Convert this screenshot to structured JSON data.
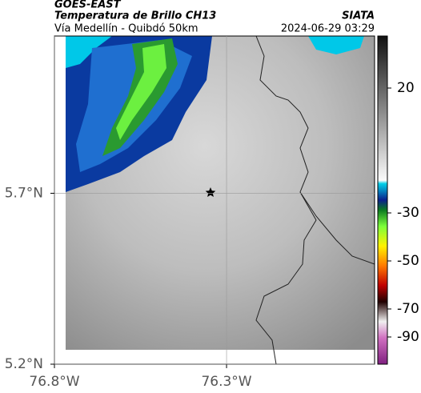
{
  "header": {
    "title": "GOES-EAST",
    "subtitle": "Temperatura de Brillo CH13",
    "source": "SIATA",
    "route": "Vía Medellín - Quibdó 50km",
    "timestamp": "2024-06-29 03:29"
  },
  "map": {
    "xlim": [
      -76.8,
      -75.87
    ],
    "ylim": [
      5.2,
      6.16
    ],
    "xticks": [
      {
        "value": -76.8,
        "label": "76.8°W"
      },
      {
        "value": -76.3,
        "label": "76.3°W"
      }
    ],
    "yticks": [
      {
        "value": 5.7,
        "label": "5.7°N"
      },
      {
        "value": 5.2,
        "label": "5.2°N"
      }
    ],
    "grid": true
  },
  "colorbar": {
    "ticks": [
      20,
      -30,
      -50,
      -70,
      -90
    ]
  }
}
